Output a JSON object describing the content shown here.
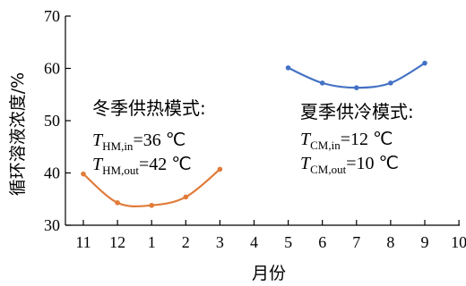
{
  "chart_data": {
    "type": "line",
    "xlabel": "月份",
    "ylabel": "循环溶液浓度/%",
    "ylim": [
      30,
      70
    ],
    "yticks": [
      "30",
      "40",
      "50",
      "60",
      "70"
    ],
    "xtick_labels": [
      "11",
      "12",
      "1",
      "2",
      "3",
      "4",
      "5",
      "6",
      "7",
      "8",
      "9",
      "10"
    ],
    "grid": false,
    "series": [
      {
        "name": "冬季供热模式",
        "color": "#E07B39",
        "x": [
          "11",
          "12",
          "1",
          "2",
          "3"
        ],
        "values": [
          39.8,
          34.3,
          33.8,
          35.4,
          40.7
        ]
      },
      {
        "name": "夏季供冷模式",
        "color": "#4472C4",
        "x": [
          "5",
          "6",
          "7",
          "8",
          "9"
        ],
        "values": [
          60.1,
          57.2,
          56.3,
          57.2,
          61.0
        ]
      }
    ],
    "annotations": [
      {
        "title": "冬季供热模式:",
        "lines": [
          {
            "T": "T",
            "sub": "HM,in",
            "value": "=36 ℃"
          },
          {
            "T": "T",
            "sub": "HM,out",
            "value": "=42 ℃"
          }
        ]
      },
      {
        "title": "夏季供冷模式:",
        "lines": [
          {
            "T": "T",
            "sub": "CM,in",
            "value": "=12 ℃"
          },
          {
            "T": "T",
            "sub": "CM,out",
            "value": "=10 ℃"
          }
        ]
      }
    ]
  }
}
